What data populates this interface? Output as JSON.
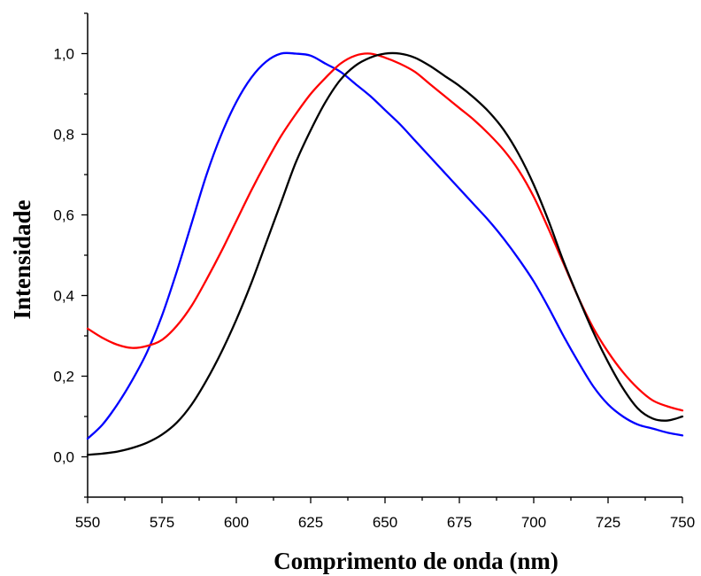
{
  "chart_data": {
    "type": "line",
    "title": "",
    "xlabel": "Comprimento de onda (nm)",
    "ylabel": "Intensidade",
    "xlim": [
      550,
      750
    ],
    "ylim": [
      -0.1,
      1.1
    ],
    "xticks": [
      550,
      575,
      600,
      625,
      650,
      675,
      700,
      725,
      750
    ],
    "xtick_labels": [
      "550",
      "575",
      "600",
      "625",
      "650",
      "675",
      "700",
      "725",
      "750"
    ],
    "yticks": [
      0.0,
      0.2,
      0.4,
      0.6,
      0.8,
      1.0
    ],
    "ytick_labels": [
      "0,0",
      "0,2",
      "0,4",
      "0,6",
      "0,8",
      "1,0"
    ],
    "grid": false,
    "legend": "none",
    "series": [
      {
        "color": "#0000ff",
        "x": [
          550,
          555,
          560,
          565,
          570,
          575,
          580,
          585,
          590,
          595,
          600,
          605,
          610,
          615,
          620,
          625,
          630,
          635,
          640,
          645,
          650,
          655,
          660,
          665,
          670,
          675,
          680,
          685,
          690,
          695,
          700,
          705,
          710,
          715,
          720,
          725,
          730,
          735,
          740,
          745,
          750
        ],
        "y": [
          0.045,
          0.08,
          0.13,
          0.19,
          0.26,
          0.35,
          0.46,
          0.58,
          0.7,
          0.8,
          0.88,
          0.94,
          0.98,
          1.0,
          1.0,
          0.995,
          0.975,
          0.955,
          0.925,
          0.895,
          0.86,
          0.825,
          0.785,
          0.745,
          0.705,
          0.665,
          0.625,
          0.585,
          0.54,
          0.49,
          0.435,
          0.37,
          0.3,
          0.235,
          0.175,
          0.13,
          0.1,
          0.08,
          0.07,
          0.06,
          0.053
        ]
      },
      {
        "color": "#ff0000",
        "x": [
          550,
          555,
          560,
          565,
          570,
          575,
          580,
          585,
          590,
          595,
          600,
          605,
          610,
          615,
          620,
          625,
          630,
          635,
          640,
          645,
          650,
          655,
          660,
          665,
          670,
          675,
          680,
          685,
          690,
          695,
          700,
          705,
          710,
          715,
          720,
          725,
          730,
          735,
          740,
          745,
          750
        ],
        "y": [
          0.318,
          0.295,
          0.278,
          0.27,
          0.275,
          0.29,
          0.325,
          0.375,
          0.44,
          0.51,
          0.585,
          0.66,
          0.73,
          0.795,
          0.85,
          0.9,
          0.94,
          0.975,
          0.995,
          1.0,
          0.99,
          0.975,
          0.955,
          0.925,
          0.895,
          0.865,
          0.835,
          0.8,
          0.76,
          0.71,
          0.645,
          0.565,
          0.48,
          0.395,
          0.32,
          0.26,
          0.21,
          0.17,
          0.14,
          0.125,
          0.115
        ]
      },
      {
        "color": "#000000",
        "x": [
          550,
          555,
          560,
          565,
          570,
          575,
          580,
          585,
          590,
          595,
          600,
          605,
          610,
          615,
          620,
          625,
          630,
          635,
          640,
          645,
          650,
          655,
          660,
          665,
          670,
          675,
          680,
          685,
          690,
          695,
          700,
          705,
          710,
          715,
          720,
          725,
          730,
          735,
          740,
          745,
          750
        ],
        "y": [
          0.005,
          0.008,
          0.013,
          0.022,
          0.035,
          0.055,
          0.085,
          0.13,
          0.19,
          0.26,
          0.34,
          0.43,
          0.53,
          0.63,
          0.73,
          0.81,
          0.88,
          0.935,
          0.97,
          0.99,
          1.0,
          1.0,
          0.99,
          0.97,
          0.945,
          0.92,
          0.89,
          0.855,
          0.81,
          0.75,
          0.675,
          0.585,
          0.485,
          0.395,
          0.31,
          0.235,
          0.17,
          0.12,
          0.095,
          0.09,
          0.1
        ]
      }
    ]
  }
}
